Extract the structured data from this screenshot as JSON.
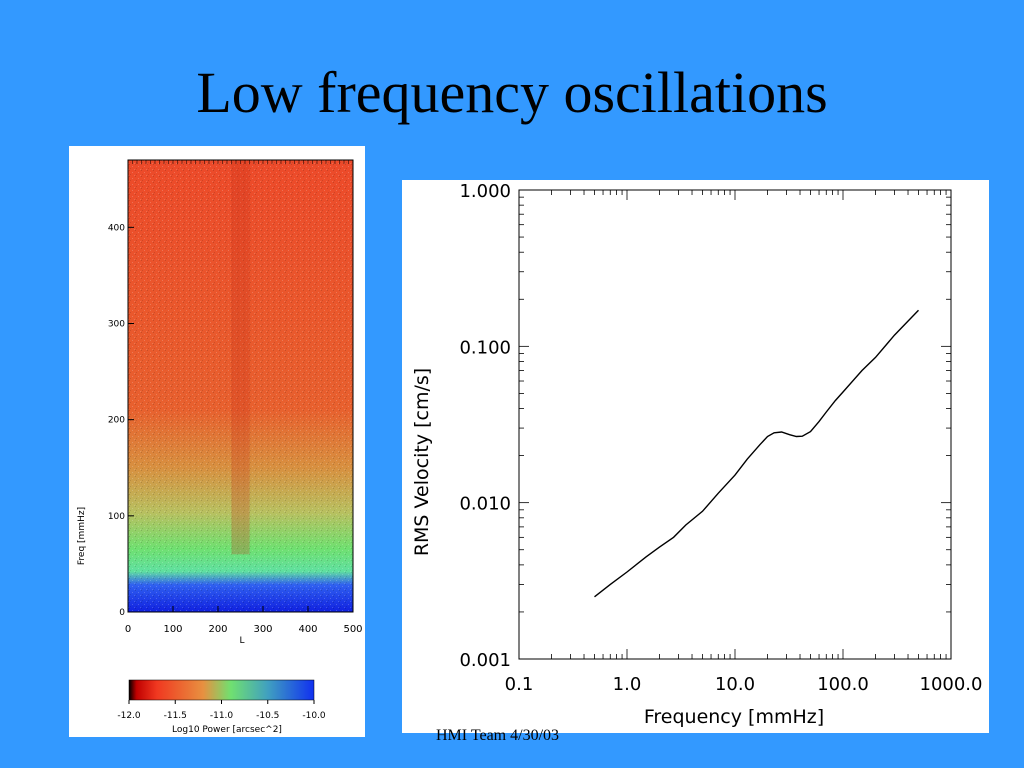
{
  "slide": {
    "title": "Low frequency oscillations",
    "footer": "HMI Team 4/30/03"
  },
  "colors": {
    "background": "#3399ff",
    "panel": "#ffffff",
    "heatmap_high": "#f04020",
    "heatmap_mid": "#60e060",
    "heatmap_low": "#1030f0"
  },
  "chart_data": [
    {
      "type": "heatmap",
      "xlabel": "L",
      "ylabel": "Freq [mmHz]",
      "xlim": [
        0,
        500
      ],
      "ylim": [
        0,
        470
      ],
      "x_ticks": [
        "0",
        "100",
        "200",
        "300",
        "400",
        "500"
      ],
      "y_ticks": [
        "0",
        "100",
        "200",
        "300",
        "400"
      ],
      "colorbar": {
        "label": "Log10 Power [arcsec^2]",
        "range": [
          -12.0,
          -10.0
        ],
        "ticks": [
          "-12.0",
          "-11.5",
          "-11.0",
          "-10.5",
          "-10.0"
        ]
      },
      "bands": [
        {
          "freq_from": 0,
          "freq_to": 20,
          "level": "low"
        },
        {
          "freq_from": 20,
          "freq_to": 40,
          "level": "mid"
        },
        {
          "freq_from": 40,
          "freq_to": 100,
          "level": "transition"
        },
        {
          "freq_from": 100,
          "freq_to": 470,
          "level": "high"
        }
      ]
    },
    {
      "type": "line",
      "scale": "log-log",
      "xlabel": "Frequency [mmHz]",
      "ylabel": "RMS Velocity [cm/s]",
      "xlim": [
        0.1,
        1000
      ],
      "ylim": [
        0.001,
        1.0
      ],
      "x_ticks": [
        "0.1",
        "1.0",
        "10.0",
        "100.0",
        "1000.0"
      ],
      "y_ticks": [
        "0.001",
        "0.010",
        "0.100",
        "1.000"
      ],
      "x": [
        0.5,
        0.7,
        1.0,
        1.5,
        2.0,
        2.7,
        3.5,
        5,
        7,
        10,
        13,
        17,
        20,
        23,
        27,
        32,
        37,
        42,
        50,
        60,
        70,
        85,
        100,
        150,
        200,
        300,
        400,
        500
      ],
      "y": [
        0.0025,
        0.003,
        0.0036,
        0.0045,
        0.0052,
        0.006,
        0.0072,
        0.0088,
        0.0115,
        0.015,
        0.019,
        0.0235,
        0.0265,
        0.028,
        0.0283,
        0.0272,
        0.0265,
        0.0266,
        0.0285,
        0.033,
        0.038,
        0.045,
        0.051,
        0.07,
        0.085,
        0.118,
        0.145,
        0.17
      ]
    }
  ]
}
